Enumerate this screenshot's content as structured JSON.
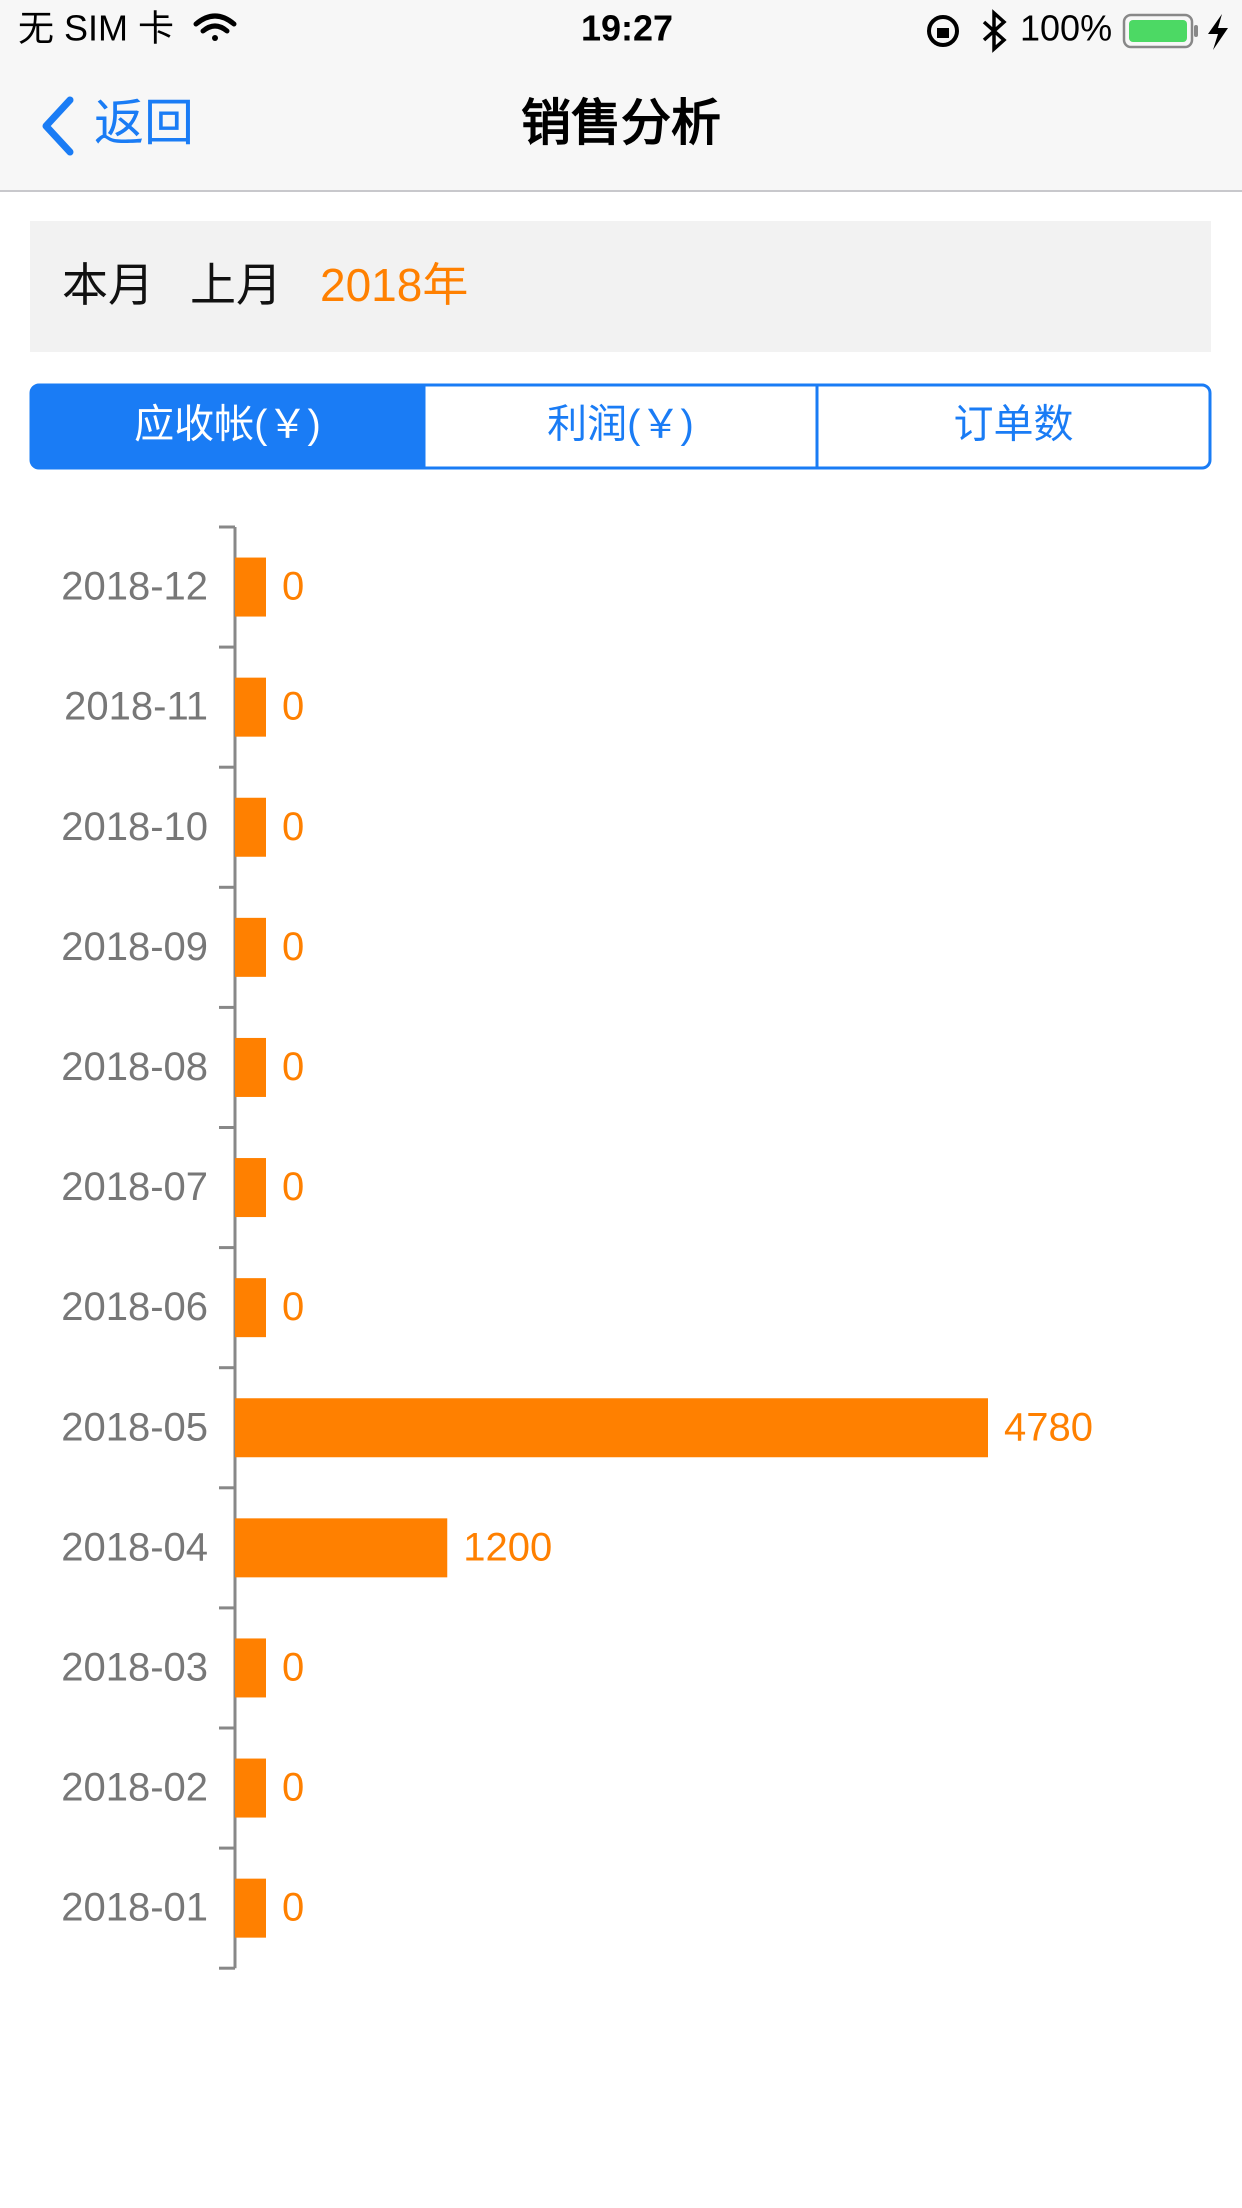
{
  "status_bar": {
    "carrier": "无 SIM 卡",
    "time": "19:27",
    "battery": "100%"
  },
  "nav": {
    "back": "返回",
    "title": "销售分析"
  },
  "filters": [
    "本月",
    "上月",
    "2018年"
  ],
  "segments": [
    "应收帐(￥)",
    "利润(￥)",
    "订单数"
  ],
  "chart_data": {
    "type": "bar",
    "orientation": "horizontal",
    "color": "#ff8000",
    "categories": [
      "2018-12",
      "2018-11",
      "2018-10",
      "2018-09",
      "2018-08",
      "2018-07",
      "2018-06",
      "2018-05",
      "2018-04",
      "2018-03",
      "2018-02",
      "2018-01"
    ],
    "values": [
      0,
      0,
      0,
      0,
      0,
      0,
      0,
      4780,
      1200,
      0,
      0,
      0
    ]
  }
}
